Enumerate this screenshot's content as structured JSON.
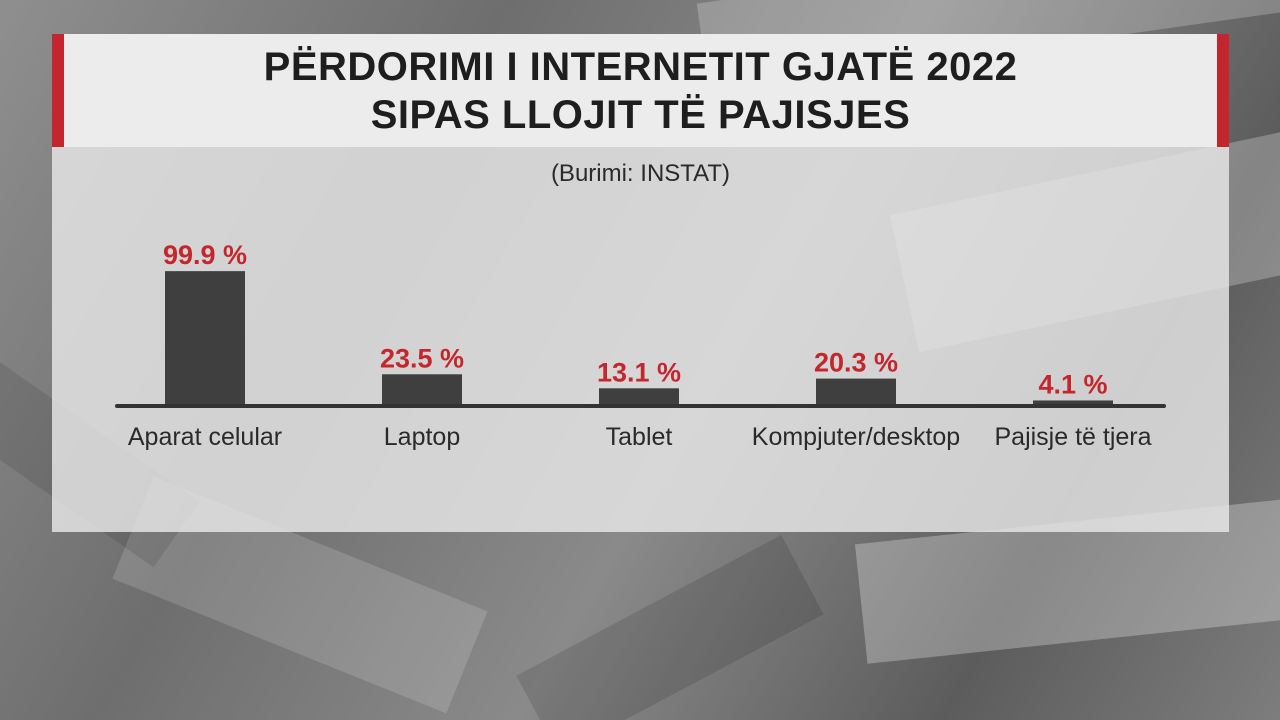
{
  "title_lines": [
    "PËRDORIMI I INTERNETIT GJATË 2022",
    "SIPAS LLOJIT TË PAJISJES"
  ],
  "source": "(Burimi: INSTAT)",
  "chart_data": {
    "type": "bar",
    "categories": [
      "Aparat celular",
      "Laptop",
      "Tablet",
      "Kompjuter/desktop",
      "Pajisje të tjera"
    ],
    "values": [
      99.9,
      23.5,
      13.1,
      20.3,
      4.1
    ],
    "value_labels": [
      "99.9 %",
      "23.5 %",
      "13.1 %",
      "20.3 %",
      "4.1 %"
    ],
    "ylim": [
      0,
      100
    ],
    "bar_color": "#3f3f3f",
    "label_color": "#c4262e",
    "grid": false,
    "legend": "none"
  }
}
